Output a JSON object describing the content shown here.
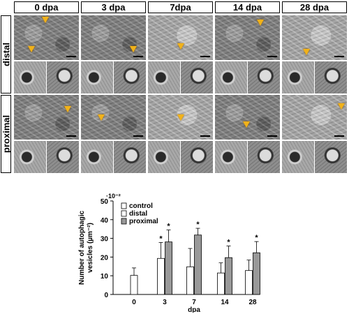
{
  "figure": {
    "columns": [
      "0 dpa",
      "3 dpa",
      "7dpa",
      "14 dpa",
      "28 dpa"
    ],
    "rows": [
      "distal",
      "proximal"
    ],
    "arrow_color": "#f1b21a"
  },
  "chart_data": {
    "type": "bar",
    "categories": [
      "0",
      "3",
      "7",
      "14",
      "28"
    ],
    "series": [
      {
        "name": "control",
        "color": "#ffffff",
        "values": [
          10.2,
          null,
          null,
          null,
          null
        ],
        "errors": [
          4.0,
          null,
          null,
          null,
          null
        ],
        "significant": [
          false,
          false,
          false,
          false,
          false
        ]
      },
      {
        "name": "distal",
        "color": "#ffffff",
        "values": [
          null,
          19.3,
          14.8,
          11.5,
          12.8
        ],
        "errors": [
          null,
          8.5,
          9.8,
          5.4,
          5.6
        ],
        "significant": [
          false,
          true,
          false,
          false,
          false
        ]
      },
      {
        "name": "proximal",
        "color": "#999999",
        "values": [
          null,
          28.1,
          31.8,
          19.7,
          22.3
        ],
        "errors": [
          null,
          6.4,
          3.6,
          6.2,
          6.0
        ],
        "significant": [
          false,
          true,
          true,
          true,
          true
        ]
      }
    ],
    "ylim": [
      0,
      50
    ],
    "yticks": [
      0,
      10,
      20,
      30,
      40,
      50
    ],
    "yscale_label": "·10⁻²",
    "ylabel_line1": "Number of autophagic",
    "ylabel_line2": "vesicles (µm⁻²)",
    "xlabel": "dpa",
    "significance_marker": "*",
    "legend_position": "top-left"
  }
}
